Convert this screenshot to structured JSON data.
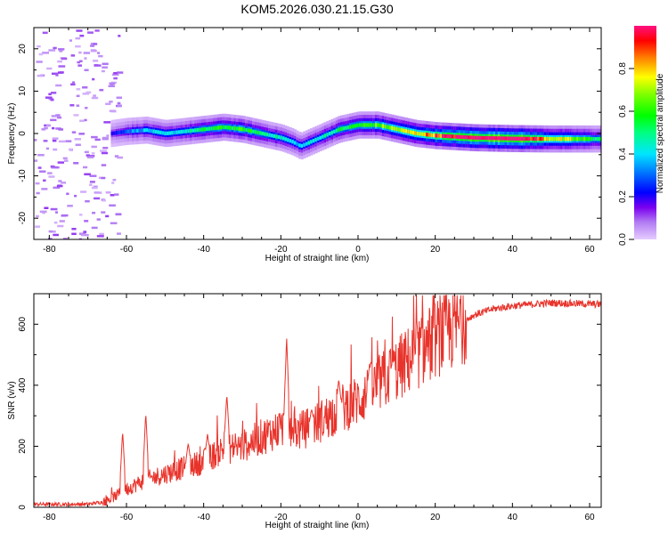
{
  "title": "KOM5.2026.030.21.15.G30",
  "chart_data": [
    {
      "type": "heatmap",
      "name": "spectrogram",
      "xlabel": "Height of straight line (km)",
      "ylabel": "Frequency (Hz)",
      "xlim": [
        -84,
        63
      ],
      "ylim": [
        -25,
        25
      ],
      "xticks": [
        "-80",
        "-60",
        "-40",
        "-20",
        "0",
        "20",
        "40",
        "60"
      ],
      "yticks": [
        "-20",
        "-10",
        "0",
        "10",
        "20"
      ],
      "colorbar": {
        "label": "Normalized spectral amplitude",
        "range": [
          0,
          1
        ],
        "ticks": [
          "0.0",
          "0.2",
          "0.4",
          "0.6",
          "0.8"
        ]
      },
      "ridge": {
        "x": [
          -64,
          -60,
          -55,
          -50,
          -45,
          -40,
          -35,
          -30,
          -25,
          -20,
          -17,
          -15,
          -10,
          -5,
          0,
          5,
          10,
          15,
          20,
          30,
          40,
          50,
          63
        ],
        "freq": [
          0,
          0.5,
          0.8,
          0,
          0.5,
          1,
          1.5,
          1,
          0,
          -1,
          -2,
          -3,
          -1,
          1,
          2,
          2,
          1,
          0,
          -0.5,
          -1,
          -1.2,
          -1.3,
          -1.3
        ],
        "amplitude": [
          0.15,
          0.25,
          0.3,
          0.3,
          0.35,
          0.4,
          0.45,
          0.45,
          0.4,
          0.35,
          0.3,
          0.3,
          0.35,
          0.4,
          0.45,
          0.5,
          0.55,
          0.6,
          0.7,
          0.85,
          0.9,
          0.6,
          0.4
        ]
      }
    },
    {
      "type": "line",
      "name": "snr",
      "xlabel": "Height of straight line (km)",
      "ylabel": "SNR (v/v)",
      "xlim": [
        -84,
        63
      ],
      "ylim": [
        0,
        700
      ],
      "xticks": [
        "-80",
        "-60",
        "-40",
        "-20",
        "0",
        "20",
        "40",
        "60"
      ],
      "yticks": [
        "0",
        "200",
        "400",
        "600"
      ],
      "color": "#e8332b",
      "trend": {
        "x": [
          -84,
          -70,
          -65,
          -60,
          -55,
          -50,
          -45,
          -40,
          -35,
          -30,
          -25,
          -20,
          -15,
          -10,
          -5,
          0,
          5,
          10,
          15,
          20,
          25,
          30,
          35,
          40,
          50,
          63
        ],
        "y": [
          10,
          10,
          20,
          60,
          90,
          110,
          130,
          150,
          190,
          200,
          230,
          260,
          250,
          280,
          320,
          350,
          400,
          450,
          500,
          550,
          590,
          630,
          650,
          660,
          670,
          665
        ]
      },
      "spikes": [
        {
          "x": -61,
          "y": 250
        },
        {
          "x": -55,
          "y": 310
        },
        {
          "x": -44,
          "y": 210
        },
        {
          "x": -39,
          "y": 240
        },
        {
          "x": -34,
          "y": 370
        },
        {
          "x": -18.5,
          "y": 560
        },
        {
          "x": -12,
          "y": 320
        },
        {
          "x": -5,
          "y": 420
        },
        {
          "x": 3,
          "y": 470
        },
        {
          "x": 9,
          "y": 480
        }
      ]
    }
  ]
}
